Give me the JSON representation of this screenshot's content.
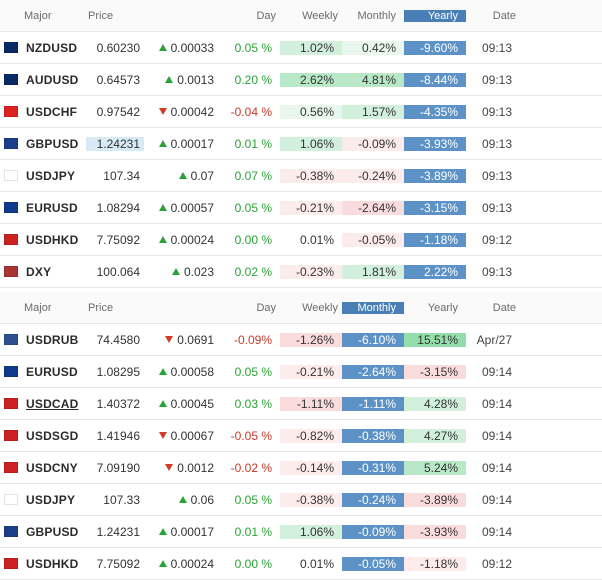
{
  "tables": [
    {
      "sort_highlight_col": "yearly",
      "headers": {
        "major": "Major",
        "price": "Price",
        "day": "Day",
        "weekly": "Weekly",
        "monthly": "Monthly",
        "yearly": "Yearly",
        "date": "Date"
      },
      "rows": [
        {
          "flag": "#0a2a66",
          "pair": "NZDUSD",
          "price": "0.60230",
          "price_hl": false,
          "delta_dir": "up",
          "delta": "0.00033",
          "day": "0.05 %",
          "day_s": "pos",
          "weekly": "1.02%",
          "weekly_bg": "bg-g-2",
          "monthly": "0.42%",
          "monthly_bg": "bg-g-1",
          "yearly": "-9.60%",
          "date": "09:13"
        },
        {
          "flag": "#0a2a66",
          "pair": "AUDUSD",
          "price": "0.64573",
          "price_hl": false,
          "delta_dir": "up",
          "delta": "0.0013",
          "day": "0.20 %",
          "day_s": "pos",
          "weekly": "2.62%",
          "weekly_bg": "bg-g-3",
          "monthly": "4.81%",
          "monthly_bg": "bg-g-3",
          "yearly": "-8.44%",
          "date": "09:13"
        },
        {
          "flag": "#d22",
          "pair": "USDCHF",
          "price": "0.97542",
          "price_hl": false,
          "delta_dir": "down",
          "delta": "0.00042",
          "day": "-0.04 %",
          "day_s": "neg",
          "weekly": "0.56%",
          "weekly_bg": "bg-g-1",
          "monthly": "1.57%",
          "monthly_bg": "bg-g-2",
          "yearly": "-4.35%",
          "date": "09:13"
        },
        {
          "flag": "#1b3e8b",
          "pair": "GBPUSD",
          "price": "1.24231",
          "price_hl": true,
          "delta_dir": "up",
          "delta": "0.00017",
          "day": "0.01 %",
          "day_s": "pos",
          "weekly": "1.06%",
          "weekly_bg": "bg-g-2",
          "monthly": "-0.09%",
          "monthly_bg": "bg-r-1",
          "yearly": "-3.93%",
          "date": "09:13"
        },
        {
          "flag": "#fff",
          "pair": "USDJPY",
          "price": "107.34",
          "price_hl": false,
          "delta_dir": "up",
          "delta": "0.07",
          "day": "0.07 %",
          "day_s": "pos",
          "weekly": "-0.38%",
          "weekly_bg": "bg-r-1",
          "monthly": "-0.24%",
          "monthly_bg": "bg-r-1",
          "yearly": "-3.89%",
          "date": "09:13"
        },
        {
          "flag": "#103a8b",
          "pair": "EURUSD",
          "price": "1.08294",
          "price_hl": false,
          "delta_dir": "up",
          "delta": "0.00057",
          "day": "0.05 %",
          "day_s": "pos",
          "weekly": "-0.21%",
          "weekly_bg": "bg-r-1",
          "monthly": "-2.64%",
          "monthly_bg": "bg-r-2",
          "yearly": "-3.15%",
          "date": "09:13"
        },
        {
          "flag": "#c22",
          "pair": "USDHKD",
          "price": "7.75092",
          "price_hl": false,
          "delta_dir": "up",
          "delta": "0.00024",
          "day": "0.00 %",
          "day_s": "pos",
          "weekly": "0.01%",
          "weekly_bg": "",
          "monthly": "-0.05%",
          "monthly_bg": "bg-r-1",
          "yearly": "-1.18%",
          "date": "09:12"
        },
        {
          "flag": "#a33",
          "pair": "DXY",
          "price": "100.064",
          "price_hl": false,
          "delta_dir": "up",
          "delta": "0.023",
          "day": "0.02 %",
          "day_s": "pos",
          "weekly": "-0.23%",
          "weekly_bg": "bg-r-1",
          "monthly": "1.81%",
          "monthly_bg": "bg-g-2",
          "yearly": "2.22%",
          "date": "09:13"
        }
      ]
    },
    {
      "sort_highlight_col": "monthly",
      "headers": {
        "major": "Major",
        "price": "Price",
        "day": "Day",
        "weekly": "Weekly",
        "monthly": "Monthly",
        "yearly": "Yearly",
        "date": "Date"
      },
      "rows": [
        {
          "flag": "#2b4f8f",
          "pair": "USDRUB",
          "price": "74.4580",
          "price_hl": false,
          "delta_dir": "down",
          "delta": "0.0691",
          "day": "-0.09%",
          "day_s": "neg",
          "weekly": "-1.26%",
          "weekly_bg": "bg-r-2",
          "monthly": "-6.10%",
          "yearly": "15.51%",
          "yearly_bg": "bg-g-4",
          "date": "Apr/27"
        },
        {
          "flag": "#103a8b",
          "pair": "EURUSD",
          "price": "1.08295",
          "price_hl": false,
          "delta_dir": "up",
          "delta": "0.00058",
          "day": "0.05 %",
          "day_s": "pos",
          "weekly": "-0.21%",
          "weekly_bg": "bg-r-1",
          "monthly": "-2.64%",
          "yearly": "-3.15%",
          "yearly_bg": "bg-r-2",
          "date": "09:14"
        },
        {
          "flag": "#c22",
          "pair": "USDCAD",
          "pair_ul": true,
          "price": "1.40372",
          "price_hl": false,
          "delta_dir": "up",
          "delta": "0.00045",
          "day": "0.03 %",
          "day_s": "pos",
          "weekly": "-1.11%",
          "weekly_bg": "bg-r-2",
          "monthly": "-1.11%",
          "yearly": "4.28%",
          "yearly_bg": "bg-g-2",
          "date": "09:14"
        },
        {
          "flag": "#c22",
          "pair": "USDSGD",
          "price": "1.41946",
          "price_hl": false,
          "delta_dir": "down",
          "delta": "0.00067",
          "day": "-0.05 %",
          "day_s": "neg",
          "weekly": "-0.82%",
          "weekly_bg": "bg-r-1",
          "monthly": "-0.38%",
          "yearly": "4.27%",
          "yearly_bg": "bg-g-2",
          "date": "09:14"
        },
        {
          "flag": "#c22",
          "pair": "USDCNY",
          "price": "7.09190",
          "price_hl": false,
          "delta_dir": "down",
          "delta": "0.0012",
          "day": "-0.02 %",
          "day_s": "neg",
          "weekly": "-0.14%",
          "weekly_bg": "bg-r-1",
          "monthly": "-0.31%",
          "yearly": "5.24%",
          "yearly_bg": "bg-g-3",
          "date": "09:14"
        },
        {
          "flag": "#fff",
          "pair": "USDJPY",
          "price": "107.33",
          "price_hl": false,
          "delta_dir": "up",
          "delta": "0.06",
          "day": "0.05 %",
          "day_s": "pos",
          "weekly": "-0.38%",
          "weekly_bg": "bg-r-1",
          "monthly": "-0.24%",
          "yearly": "-3.89%",
          "yearly_bg": "bg-r-2",
          "date": "09:14"
        },
        {
          "flag": "#1b3e8b",
          "pair": "GBPUSD",
          "price": "1.24231",
          "price_hl": false,
          "delta_dir": "up",
          "delta": "0.00017",
          "day": "0.01 %",
          "day_s": "pos",
          "weekly": "1.06%",
          "weekly_bg": "bg-g-2",
          "monthly": "-0.09%",
          "yearly": "-3.93%",
          "yearly_bg": "bg-r-2",
          "date": "09:14"
        },
        {
          "flag": "#c22",
          "pair": "USDHKD",
          "price": "7.75092",
          "price_hl": false,
          "delta_dir": "up",
          "delta": "0.00024",
          "day": "0.00 %",
          "day_s": "pos",
          "weekly": "0.01%",
          "weekly_bg": "",
          "monthly": "-0.05%",
          "yearly": "-1.18%",
          "yearly_bg": "bg-r-1",
          "date": "09:12"
        }
      ]
    }
  ]
}
